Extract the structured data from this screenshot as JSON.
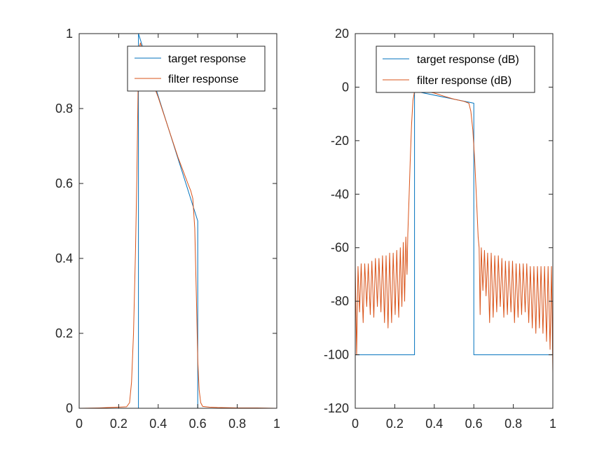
{
  "colors": {
    "target": "#0072BD",
    "filter": "#D95319",
    "axis": "#262626",
    "background": "#ffffff"
  },
  "chart_data": [
    {
      "type": "line",
      "title": "",
      "xlabel": "",
      "ylabel": "",
      "xlim": [
        0,
        1
      ],
      "ylim": [
        0,
        1
      ],
      "xticks": [
        0,
        0.2,
        0.4,
        0.6,
        0.8,
        1
      ],
      "xtick_labels": [
        "0",
        "0.2",
        "0.4",
        "0.6",
        "0.8",
        "1"
      ],
      "yticks": [
        0,
        0.2,
        0.4,
        0.6,
        0.8,
        1
      ],
      "ytick_labels": [
        "0",
        "0.2",
        "0.4",
        "0.6",
        "0.8",
        "1"
      ],
      "grid": false,
      "legend_position": "top-right",
      "series": [
        {
          "name": "target response",
          "color": "#0072BD",
          "points": [
            [
              0,
              0
            ],
            [
              0.3,
              0
            ],
            [
              0.3,
              1
            ],
            [
              0.6,
              0.5
            ],
            [
              0.6,
              0
            ],
            [
              1,
              0
            ]
          ]
        },
        {
          "name": "filter response",
          "color": "#D95319",
          "points": [
            [
              0,
              0
            ],
            [
              0.1,
              0.001
            ],
            [
              0.15,
              0.002
            ],
            [
              0.2,
              0.003
            ],
            [
              0.24,
              0.004
            ],
            [
              0.255,
              0.015
            ],
            [
              0.265,
              0.07
            ],
            [
              0.275,
              0.2
            ],
            [
              0.285,
              0.42
            ],
            [
              0.292,
              0.62
            ],
            [
              0.298,
              0.85
            ],
            [
              0.303,
              0.96
            ],
            [
              0.31,
              0.975
            ],
            [
              0.35,
              0.9
            ],
            [
              0.4,
              0.83
            ],
            [
              0.45,
              0.75
            ],
            [
              0.5,
              0.67
            ],
            [
              0.55,
              0.6
            ],
            [
              0.565,
              0.58
            ],
            [
              0.575,
              0.56
            ],
            [
              0.585,
              0.48
            ],
            [
              0.593,
              0.3
            ],
            [
              0.6,
              0.13
            ],
            [
              0.607,
              0.05
            ],
            [
              0.615,
              0.015
            ],
            [
              0.625,
              0.005
            ],
            [
              0.66,
              0.003
            ],
            [
              0.7,
              0.002
            ],
            [
              0.8,
              0.001
            ],
            [
              0.9,
              0.001
            ],
            [
              1,
              0
            ]
          ]
        }
      ]
    },
    {
      "type": "line",
      "title": "",
      "xlabel": "",
      "ylabel": "",
      "xlim": [
        0,
        1
      ],
      "ylim": [
        -120,
        20
      ],
      "xticks": [
        0,
        0.2,
        0.4,
        0.6,
        0.8,
        1
      ],
      "xtick_labels": [
        "0",
        "0.2",
        "0.4",
        "0.6",
        "0.8",
        "1"
      ],
      "yticks": [
        -120,
        -100,
        -80,
        -60,
        -40,
        -20,
        0,
        20
      ],
      "ytick_labels": [
        "-120",
        "-100",
        "-80",
        "-60",
        "-40",
        "-20",
        "0",
        "20"
      ],
      "grid": false,
      "legend_position": "top-right",
      "series": [
        {
          "name": "target response (dB)",
          "color": "#0072BD",
          "points": [
            [
              0,
              -100
            ],
            [
              0.3,
              -100
            ],
            [
              0.3,
              -1.5
            ],
            [
              0.6,
              -6
            ],
            [
              0.6,
              -100
            ],
            [
              1,
              -100
            ]
          ]
        },
        {
          "name": "filter response (dB)",
          "color": "#D95319",
          "points": [
            [
              0,
              -67
            ],
            [
              0.007,
              -100
            ],
            [
              0.014,
              -67
            ],
            [
              0.022,
              -84
            ],
            [
              0.03,
              -66
            ],
            [
              0.04,
              -88
            ],
            [
              0.048,
              -66
            ],
            [
              0.058,
              -82
            ],
            [
              0.066,
              -66
            ],
            [
              0.076,
              -85
            ],
            [
              0.084,
              -65
            ],
            [
              0.094,
              -86
            ],
            [
              0.102,
              -64
            ],
            [
              0.112,
              -82
            ],
            [
              0.12,
              -64
            ],
            [
              0.13,
              -84
            ],
            [
              0.138,
              -63
            ],
            [
              0.148,
              -88
            ],
            [
              0.156,
              -63
            ],
            [
              0.166,
              -90
            ],
            [
              0.174,
              -62
            ],
            [
              0.184,
              -88
            ],
            [
              0.192,
              -62
            ],
            [
              0.202,
              -85
            ],
            [
              0.21,
              -61
            ],
            [
              0.22,
              -86
            ],
            [
              0.228,
              -60
            ],
            [
              0.236,
              -82
            ],
            [
              0.243,
              -58
            ],
            [
              0.25,
              -80
            ],
            [
              0.256,
              -56
            ],
            [
              0.262,
              -70
            ],
            [
              0.266,
              -55
            ],
            [
              0.272,
              -42
            ],
            [
              0.278,
              -28
            ],
            [
              0.285,
              -14
            ],
            [
              0.292,
              -5
            ],
            [
              0.3,
              -1.5
            ],
            [
              0.35,
              -1.5
            ],
            [
              0.4,
              -2.2
            ],
            [
              0.45,
              -3.4
            ],
            [
              0.5,
              -4.5
            ],
            [
              0.55,
              -5.3
            ],
            [
              0.575,
              -6
            ],
            [
              0.585,
              -9
            ],
            [
              0.595,
              -16
            ],
            [
              0.605,
              -28
            ],
            [
              0.615,
              -44
            ],
            [
              0.622,
              -56
            ],
            [
              0.627,
              -60
            ],
            [
              0.632,
              -85
            ],
            [
              0.638,
              -60
            ],
            [
              0.646,
              -76
            ],
            [
              0.654,
              -61
            ],
            [
              0.662,
              -78
            ],
            [
              0.67,
              -62
            ],
            [
              0.68,
              -88
            ],
            [
              0.688,
              -62
            ],
            [
              0.698,
              -86
            ],
            [
              0.706,
              -63
            ],
            [
              0.716,
              -84
            ],
            [
              0.724,
              -63
            ],
            [
              0.734,
              -82
            ],
            [
              0.742,
              -64
            ],
            [
              0.752,
              -86
            ],
            [
              0.76,
              -65
            ],
            [
              0.77,
              -85
            ],
            [
              0.778,
              -65
            ],
            [
              0.788,
              -84
            ],
            [
              0.796,
              -65
            ],
            [
              0.806,
              -88
            ],
            [
              0.814,
              -66
            ],
            [
              0.824,
              -86
            ],
            [
              0.832,
              -66
            ],
            [
              0.842,
              -85
            ],
            [
              0.85,
              -66
            ],
            [
              0.86,
              -84
            ],
            [
              0.868,
              -66
            ],
            [
              0.878,
              -88
            ],
            [
              0.886,
              -67
            ],
            [
              0.896,
              -90
            ],
            [
              0.904,
              -67
            ],
            [
              0.914,
              -92
            ],
            [
              0.922,
              -67
            ],
            [
              0.932,
              -90
            ],
            [
              0.94,
              -67
            ],
            [
              0.95,
              -92
            ],
            [
              0.958,
              -67
            ],
            [
              0.968,
              -95
            ],
            [
              0.976,
              -67
            ],
            [
              0.986,
              -98
            ],
            [
              0.993,
              -67
            ],
            [
              1,
              -107
            ]
          ]
        }
      ]
    }
  ]
}
